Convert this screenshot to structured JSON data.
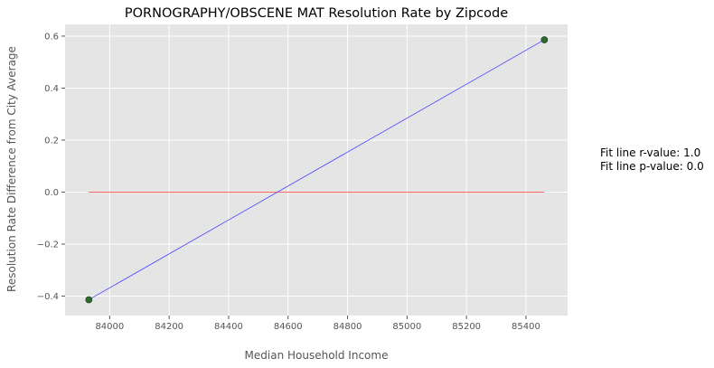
{
  "chart_data": {
    "type": "scatter",
    "title": "PORNOGRAPHY/OBSCENE MAT Resolution Rate by Zipcode",
    "xlabel": "Median Household Income",
    "ylabel": "Resolution Rate Difference from City Average",
    "xlim": [
      83850,
      85540
    ],
    "ylim": [
      -0.475,
      0.645
    ],
    "xticks": [
      84000,
      84200,
      84400,
      84600,
      84800,
      85000,
      85200,
      85400
    ],
    "yticks": [
      -0.4,
      -0.2,
      0.0,
      0.2,
      0.4,
      0.6
    ],
    "xtick_labels": [
      "84000",
      "84200",
      "84400",
      "84600",
      "84800",
      "85000",
      "85200",
      "85400"
    ],
    "ytick_labels": [
      "−0.4",
      "−0.2",
      "0.0",
      "0.2",
      "0.4",
      "0.6"
    ],
    "grid": true,
    "points": [
      {
        "x": 83930,
        "y": -0.414
      },
      {
        "x": 85462,
        "y": 0.586
      }
    ],
    "fit_line": {
      "x": [
        83930,
        85462
      ],
      "y": [
        -0.414,
        0.586
      ]
    },
    "zero_line": {
      "x": [
        83930,
        85462
      ],
      "y": [
        0.0,
        0.0
      ]
    },
    "annotations": [
      "Fit line r-value: 1.0",
      "Fit line p-value: 0.0"
    ],
    "colors": {
      "plot_bg": "#e5e5e5",
      "grid": "#ffffff",
      "points": "#2d6a2d",
      "fit_line": "#4444ff",
      "zero_line": "#ff6666"
    }
  }
}
